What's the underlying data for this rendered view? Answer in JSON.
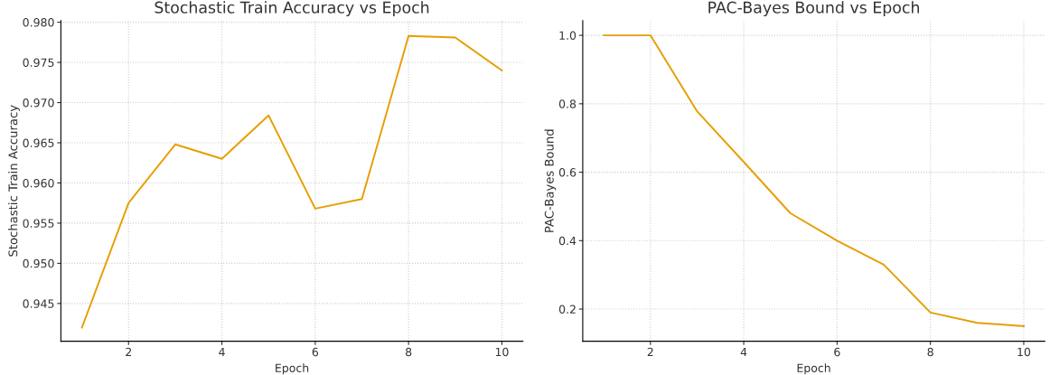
{
  "chart_data": [
    {
      "type": "line",
      "title": "Stochastic Train Accuracy vs Epoch",
      "xlabel": "Epoch",
      "ylabel": "Stochastic Train Accuracy",
      "x": [
        1,
        2,
        3,
        4,
        5,
        6,
        7,
        8,
        9,
        10
      ],
      "series": [
        {
          "color": "#e69f00",
          "values": [
            0.942,
            0.9575,
            0.9648,
            0.963,
            0.9684,
            0.9568,
            0.958,
            0.9783,
            0.9781,
            0.974
          ]
        }
      ],
      "xlim": [
        0.55,
        10.45
      ],
      "xticks": [
        2,
        4,
        6,
        8,
        10
      ],
      "ylim": [
        0.9403,
        0.9802
      ],
      "yticks": [
        {
          "value": 0.945,
          "label": "0.945"
        },
        {
          "value": 0.95,
          "label": "0.950"
        },
        {
          "value": 0.955,
          "label": "0.955"
        },
        {
          "value": 0.96,
          "label": "0.960"
        },
        {
          "value": 0.965,
          "label": "0.965"
        },
        {
          "value": 0.97,
          "label": "0.970"
        },
        {
          "value": 0.975,
          "label": "0.975"
        },
        {
          "value": 0.98,
          "label": "0.980"
        }
      ],
      "grid": true,
      "marker": "none",
      "line_style": "solid"
    },
    {
      "type": "line",
      "title": "PAC-Bayes Bound vs Epoch",
      "xlabel": "Epoch",
      "ylabel": "PAC-Bayes Bound",
      "x": [
        1,
        2,
        3,
        4,
        5,
        6,
        7,
        8,
        9,
        10
      ],
      "series": [
        {
          "color": "#e69f00",
          "values": [
            1.0,
            1.0,
            0.778,
            0.63,
            0.48,
            0.4,
            0.33,
            0.19,
            0.16,
            0.15
          ]
        }
      ],
      "xlim": [
        0.55,
        10.45
      ],
      "xticks": [
        2,
        4,
        6,
        8,
        10
      ],
      "ylim": [
        0.106,
        1.043
      ],
      "yticks": [
        {
          "value": 0.2,
          "label": "0.2"
        },
        {
          "value": 0.4,
          "label": "0.4"
        },
        {
          "value": 0.6,
          "label": "0.6"
        },
        {
          "value": 0.8,
          "label": "0.8"
        },
        {
          "value": 1.0,
          "label": "1.0"
        }
      ],
      "grid": true,
      "marker": "none",
      "line_style": "solid"
    }
  ]
}
